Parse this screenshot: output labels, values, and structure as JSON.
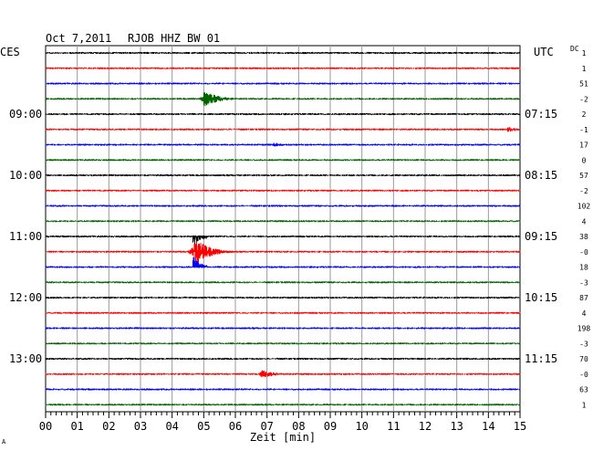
{
  "header": {
    "date": "Oct 7,2011",
    "station": "RJOB HHZ BW 01",
    "left_timezone": "CES",
    "right_timezone": "UTC",
    "dc_label": "DC"
  },
  "x_axis": {
    "label": "Zeit [min]",
    "ticks": [
      "00",
      "01",
      "02",
      "03",
      "04",
      "05",
      "06",
      "07",
      "08",
      "09",
      "10",
      "11",
      "12",
      "13",
      "14",
      "15"
    ]
  },
  "left_time_labels": [
    {
      "text": "09:00",
      "trace": 4
    },
    {
      "text": "10:00",
      "trace": 8
    },
    {
      "text": "11:00",
      "trace": 12
    },
    {
      "text": "12:00",
      "trace": 16
    },
    {
      "text": "13:00",
      "trace": 20
    }
  ],
  "right_time_labels": [
    {
      "text": "07:15",
      "trace": 4
    },
    {
      "text": "08:15",
      "trace": 8
    },
    {
      "text": "09:15",
      "trace": 12
    },
    {
      "text": "10:15",
      "trace": 16
    },
    {
      "text": "11:15",
      "trace": 20
    }
  ],
  "dc_offsets": [
    "1",
    "1",
    "51",
    "-2",
    "2",
    "-1",
    "17",
    "0",
    "57",
    "-2",
    "102",
    "4",
    "38",
    "-0",
    "18",
    "-3",
    "87",
    "4",
    "198",
    "-3",
    "70",
    "-0",
    "63",
    "1"
  ],
  "trace_colors": [
    "#000000",
    "#ff0000",
    "#0000ff",
    "#006400"
  ],
  "events": [
    {
      "trace": 3,
      "minute": 5.0,
      "amplitude": "medium",
      "coda_minutes": 2.0
    },
    {
      "trace": 5,
      "minute": 14.6,
      "amplitude": "small",
      "coda_minutes": 0.3
    },
    {
      "trace": 6,
      "minute": 7.2,
      "amplitude": "tiny",
      "coda_minutes": 0.3
    },
    {
      "trace": 13,
      "minute": 4.7,
      "amplitude": "large",
      "coda_minutes": 1.8
    },
    {
      "trace": 12,
      "minute": 4.7,
      "amplitude": "spill-up",
      "coda_minutes": 0.4
    },
    {
      "trace": 14,
      "minute": 4.7,
      "amplitude": "spill-down",
      "coda_minutes": 0.4
    },
    {
      "trace": 21,
      "minute": 6.8,
      "amplitude": "medium-low",
      "coda_minutes": 1.2
    }
  ],
  "footnote": "A"
}
